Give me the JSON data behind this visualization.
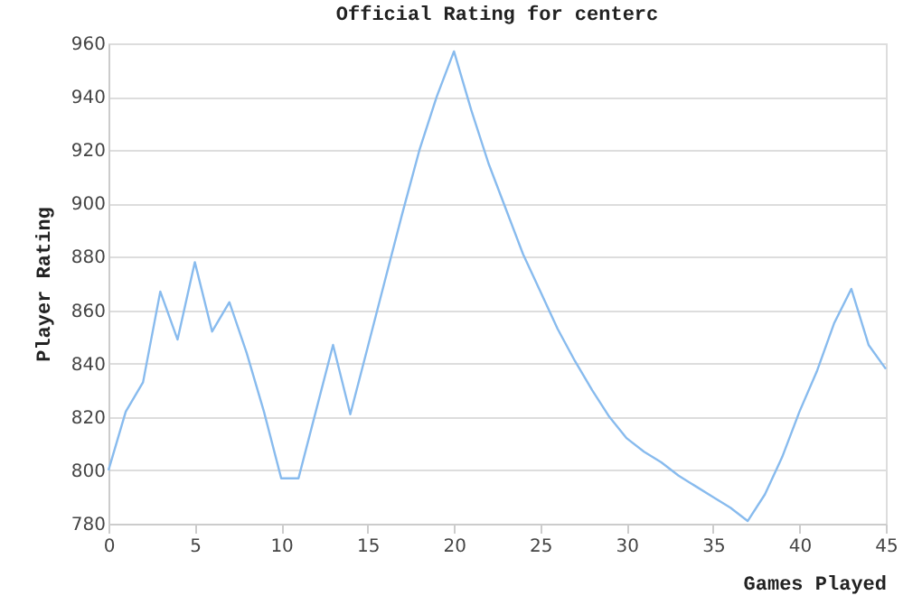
{
  "chart_data": {
    "type": "line",
    "title": "Official Rating for centerc",
    "xlabel": "Games Played",
    "ylabel": "Player Rating",
    "x": [
      0,
      1,
      2,
      3,
      4,
      5,
      6,
      7,
      8,
      9,
      10,
      11,
      12,
      13,
      14,
      15,
      16,
      17,
      18,
      19,
      20,
      21,
      22,
      23,
      24,
      25,
      26,
      27,
      28,
      29,
      30,
      31,
      32,
      33,
      34,
      35,
      36,
      37,
      38,
      39,
      40,
      41,
      42,
      43,
      44,
      45
    ],
    "series": [
      {
        "color": "#88bbee",
        "values": [
          800,
          822,
          833,
          867,
          849,
          878,
          852,
          863,
          844,
          822,
          797,
          797,
          822,
          847,
          821,
          846,
          871,
          896,
          920,
          940,
          957,
          935,
          915,
          898,
          881,
          867,
          853,
          841,
          830,
          820,
          812,
          807,
          803,
          798,
          794,
          790,
          786,
          781,
          791,
          805,
          822,
          837,
          855,
          868,
          847,
          838
        ]
      }
    ],
    "xlim": [
      0,
      45
    ],
    "xticks": [
      0,
      5,
      10,
      15,
      20,
      25,
      30,
      35,
      40,
      45
    ],
    "ylim": [
      780,
      960
    ],
    "yticks": [
      780,
      800,
      820,
      840,
      860,
      880,
      900,
      920,
      940,
      960
    ],
    "grid": "y",
    "legend": false,
    "marker": "none",
    "line_style": "solid"
  }
}
